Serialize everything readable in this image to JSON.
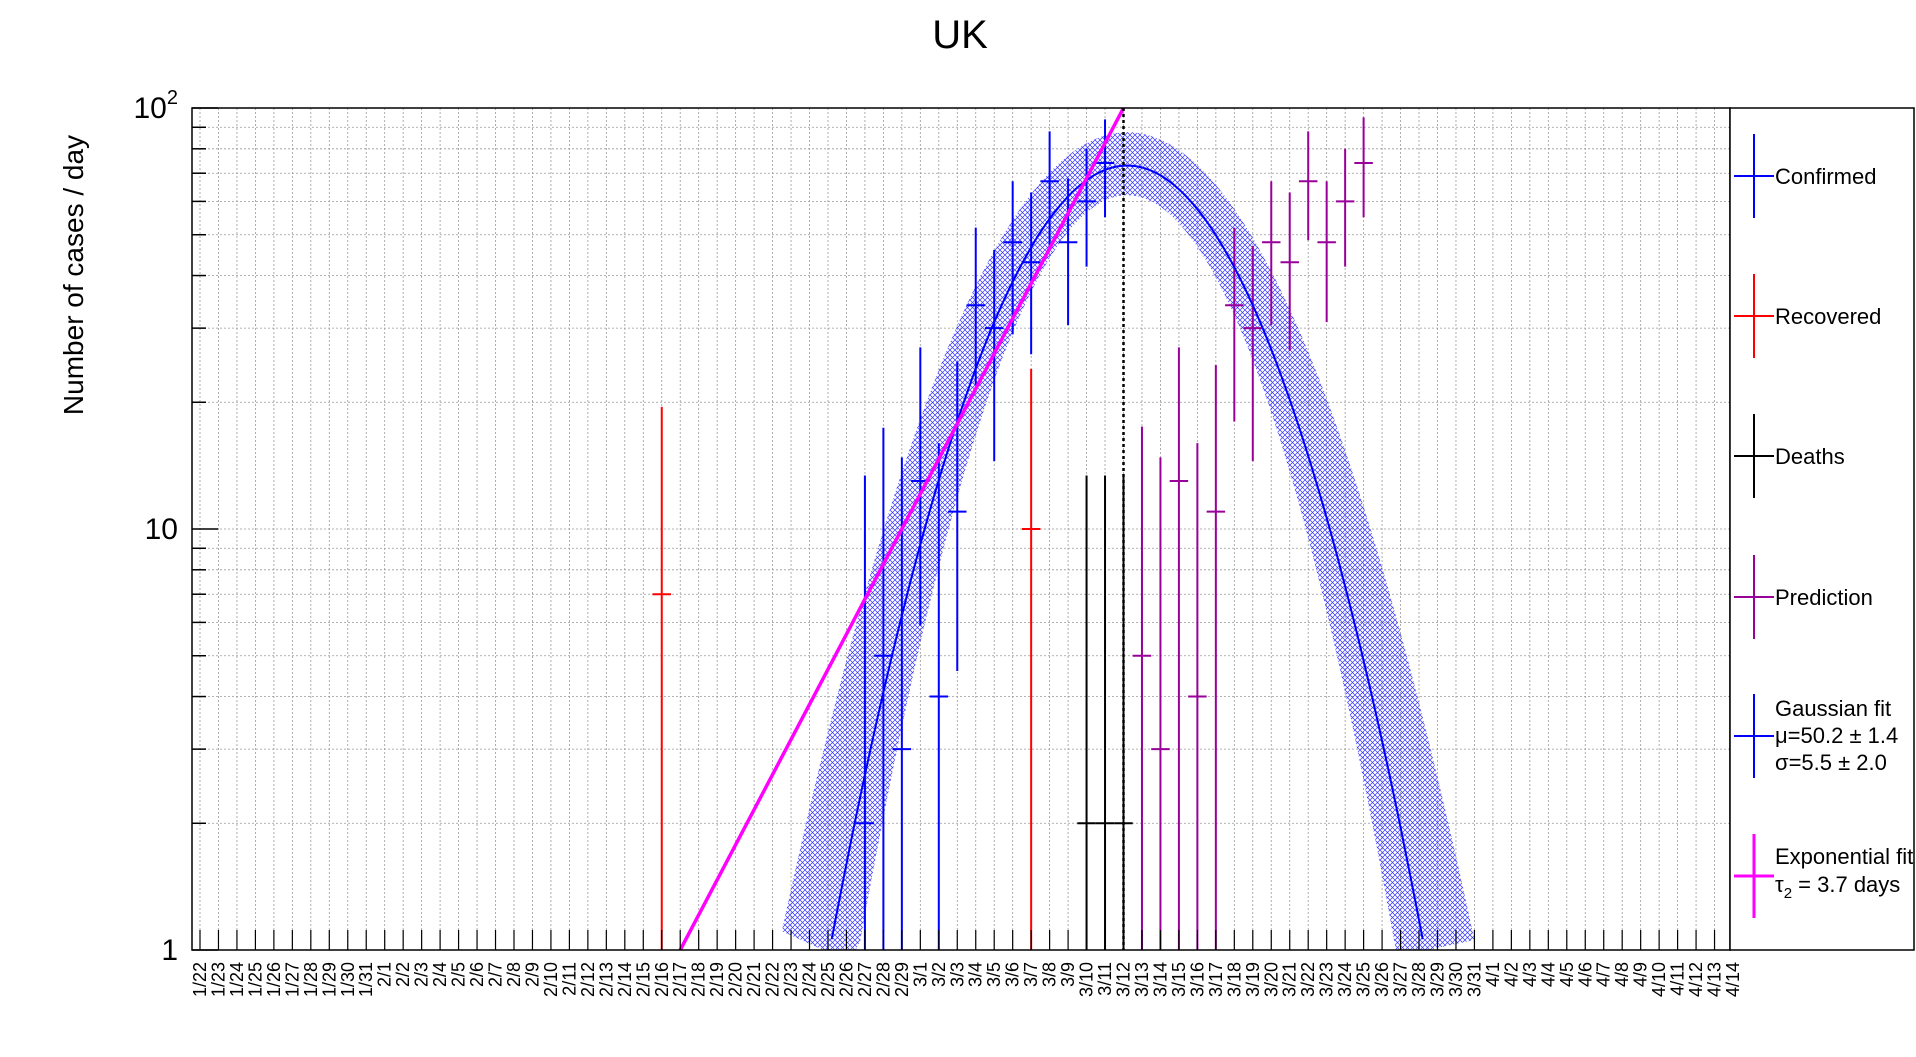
{
  "chart_data": {
    "type": "scatter",
    "title": "UK",
    "ylabel": "Number of cases / day",
    "xlabel": "",
    "yscale": "log",
    "ylim": [
      1,
      100
    ],
    "y_ticks": [
      {
        "value": 1,
        "label": "1"
      },
      {
        "value": 10,
        "label": "10"
      },
      {
        "value": 100,
        "label": "10",
        "sup": "2"
      }
    ],
    "grid": true,
    "legend_position": "right",
    "x_ticks": [
      "1/22",
      "1/23",
      "1/24",
      "1/25",
      "1/26",
      "1/27",
      "1/28",
      "1/29",
      "1/30",
      "1/31",
      "2/1",
      "2/2",
      "2/3",
      "2/4",
      "2/5",
      "2/6",
      "2/7",
      "2/8",
      "2/9",
      "2/10",
      "2/11",
      "2/12",
      "2/13",
      "2/14",
      "2/15",
      "2/16",
      "2/17",
      "2/18",
      "2/19",
      "2/20",
      "2/21",
      "2/22",
      "2/23",
      "2/24",
      "2/25",
      "2/26",
      "2/27",
      "2/28",
      "2/29",
      "3/1",
      "3/2",
      "3/3",
      "3/4",
      "3/5",
      "3/6",
      "3/7",
      "3/8",
      "3/9",
      "3/10",
      "3/11",
      "3/12",
      "3/13",
      "3/14",
      "3/15",
      "3/16",
      "3/17",
      "3/18",
      "3/19",
      "3/20",
      "3/21",
      "3/22",
      "3/23",
      "3/24",
      "3/25",
      "3/26",
      "3/27",
      "3/28",
      "3/29",
      "3/30",
      "3/31",
      "4/1",
      "4/2",
      "4/3",
      "4/4",
      "4/5",
      "4/6",
      "4/7",
      "4/8",
      "4/9",
      "4/10",
      "4/11",
      "4/12",
      "4/13",
      "4/14"
    ],
    "series": [
      {
        "name": "Confirmed",
        "color": "#0000ff",
        "marker": "cross-errorbar",
        "points": [
          {
            "x": "2/27",
            "y": 2,
            "ylo": 1,
            "yhi": 13.4
          },
          {
            "x": "2/28",
            "y": 5,
            "ylo": 1,
            "yhi": 17.4
          },
          {
            "x": "2/29",
            "y": 3,
            "ylo": 1,
            "yhi": 14.8
          },
          {
            "x": "3/1",
            "y": 13,
            "ylo": 5.9,
            "yhi": 27
          },
          {
            "x": "3/2",
            "y": 4,
            "ylo": 1,
            "yhi": 16
          },
          {
            "x": "3/3",
            "y": 11,
            "ylo": 4.6,
            "yhi": 25
          },
          {
            "x": "3/4",
            "y": 34,
            "ylo": 22,
            "yhi": 52
          },
          {
            "x": "3/5",
            "y": 30,
            "ylo": 14.5,
            "yhi": 46
          },
          {
            "x": "3/6",
            "y": 48,
            "ylo": 29,
            "yhi": 67
          },
          {
            "x": "3/7",
            "y": 43,
            "ylo": 26,
            "yhi": 63
          },
          {
            "x": "3/8",
            "y": 67,
            "ylo": 46,
            "yhi": 88
          },
          {
            "x": "3/9",
            "y": 48,
            "ylo": 30.5,
            "yhi": 68
          },
          {
            "x": "3/10",
            "y": 60,
            "ylo": 42,
            "yhi": 80
          },
          {
            "x": "3/11",
            "y": 74,
            "ylo": 55,
            "yhi": 94
          }
        ]
      },
      {
        "name": "Recovered",
        "color": "#ff0000",
        "marker": "cross-errorbar",
        "points": [
          {
            "x": "2/16",
            "y": 7,
            "ylo": 1,
            "yhi": 19.5
          },
          {
            "x": "3/7",
            "y": 10,
            "ylo": 1,
            "yhi": 24
          }
        ]
      },
      {
        "name": "Deaths",
        "color": "#000000",
        "marker": "cross-errorbar",
        "points": [
          {
            "x": "3/10",
            "y": 2,
            "ylo": 1,
            "yhi": 13.4
          },
          {
            "x": "3/11",
            "y": 2,
            "ylo": 1,
            "yhi": 13.4
          },
          {
            "x": "3/12",
            "y": 2,
            "ylo": 1,
            "yhi": 13.4
          }
        ]
      },
      {
        "name": "Prediction",
        "color": "#990099",
        "marker": "cross-errorbar",
        "points": [
          {
            "x": "3/13",
            "y": 5,
            "ylo": 1,
            "yhi": 17.5
          },
          {
            "x": "3/14",
            "y": 3,
            "ylo": 1,
            "yhi": 14.8
          },
          {
            "x": "3/15",
            "y": 13,
            "ylo": 1,
            "yhi": 27
          },
          {
            "x": "3/16",
            "y": 4,
            "ylo": 1,
            "yhi": 16
          },
          {
            "x": "3/17",
            "y": 11,
            "ylo": 1,
            "yhi": 24.5
          },
          {
            "x": "3/18",
            "y": 34,
            "ylo": 18,
            "yhi": 52
          },
          {
            "x": "3/19",
            "y": 30,
            "ylo": 14.5,
            "yhi": 47
          },
          {
            "x": "3/20",
            "y": 48,
            "ylo": 30.5,
            "yhi": 67
          },
          {
            "x": "3/21",
            "y": 43,
            "ylo": 26.5,
            "yhi": 63
          },
          {
            "x": "3/22",
            "y": 67,
            "ylo": 48.5,
            "yhi": 88
          },
          {
            "x": "3/23",
            "y": 48,
            "ylo": 31,
            "yhi": 67
          },
          {
            "x": "3/24",
            "y": 60,
            "ylo": 42,
            "yhi": 80
          },
          {
            "x": "3/25",
            "y": 74,
            "ylo": 55,
            "yhi": 95
          }
        ]
      }
    ],
    "gaussian_fit": {
      "name": "Gaussian fit",
      "label_lines": [
        "Gaussian fit",
        "μ=50.2 ± 1.4",
        " σ=5.5 ± 2.0"
      ],
      "color": "#0000ff",
      "band_color": "#3333ff",
      "mu": 50.2,
      "sigma": 5.5,
      "amplitude": 73,
      "x_origin": "1/22"
    },
    "exponential_fit": {
      "name": "Exponential fit",
      "label_lines": [
        "Exponential fit",
        "τ",
        "2",
        " = 3.7 days"
      ],
      "color": "#ff00ff",
      "x_start": "2/17",
      "y_start": 1,
      "x_end": "3/12",
      "y_end": 100
    },
    "vertical_marker": {
      "x": "3/12",
      "style": "dotted",
      "color": "#000000"
    }
  }
}
